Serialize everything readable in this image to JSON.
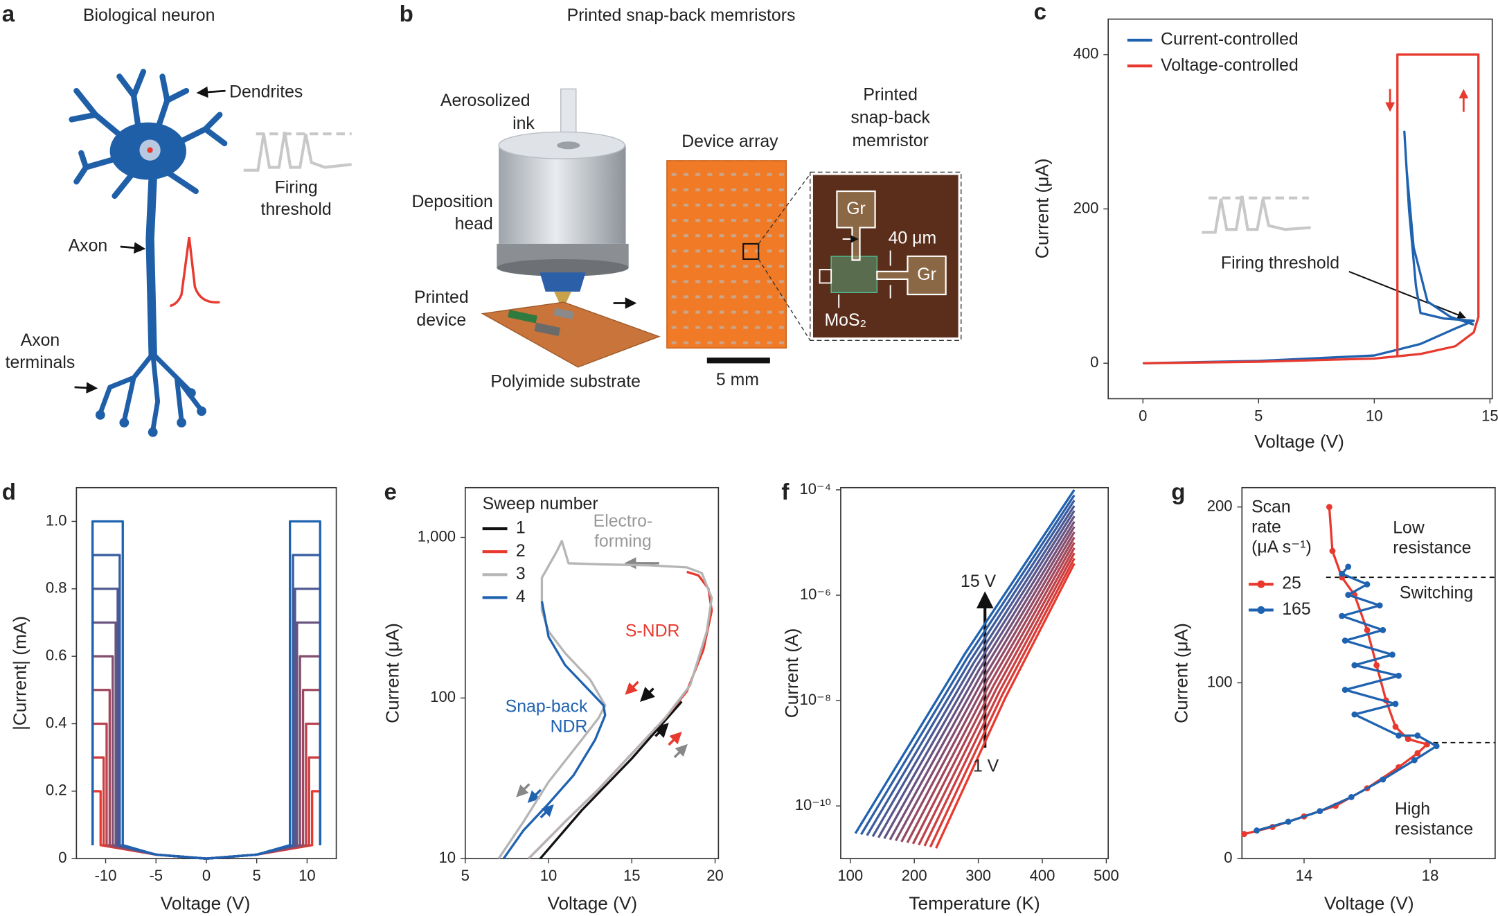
{
  "panel_labels": [
    "a",
    "b",
    "c",
    "d",
    "e",
    "f",
    "g"
  ],
  "diagram_a": {
    "title": "Biological neuron",
    "dendrites": "Dendrites",
    "firing_threshold": [
      "Firing",
      "threshold"
    ],
    "axon": "Axon",
    "axon_terminals": [
      "Axon",
      "terminals"
    ]
  },
  "diagram_b": {
    "title": "Printed snap-back memristors",
    "aerosolized_ink": [
      "Aerosolized",
      "ink"
    ],
    "deposition_head": [
      "Deposition",
      "head"
    ],
    "printed_device": [
      "Printed",
      "device"
    ],
    "substrate": "Polyimide substrate",
    "device_array": "Device array",
    "memristor": [
      "Printed",
      "snap-back",
      "memristor"
    ],
    "scale_bar": "5 mm",
    "electrode_1": "Gr",
    "electrode_2": "Gr",
    "gap": "40 μm",
    "channel": "MoS₂"
  },
  "chart_data": [
    {
      "type": "line",
      "xlabel": "Voltage (V)",
      "ylabel": "Current (μA)",
      "xlim": [
        -1.5,
        15.1
      ],
      "ylim": [
        -46,
        446
      ],
      "xticks": [
        0,
        5,
        10,
        15
      ],
      "yticks": [
        0,
        200,
        400
      ],
      "legend": "upper left",
      "series": [
        {
          "name": "Current-controlled",
          "color": "#1f62b0",
          "x": [
            0,
            5,
            10,
            12,
            13.5,
            14.3,
            13,
            12,
            11.8,
            11.5,
            11.3,
            11.4,
            11.7,
            12.3,
            13.3,
            14.3
          ],
          "values": [
            0,
            3,
            10,
            25,
            45,
            55,
            58,
            65,
            100,
            200,
            300,
            250,
            150,
            80,
            60,
            50
          ]
        },
        {
          "name": "Voltage-controlled",
          "color": "#e8392e",
          "x": [
            0,
            5,
            10,
            12,
            13.5,
            14.3,
            14.5,
            14.5,
            11.0,
            11.0
          ],
          "values": [
            0,
            2,
            6,
            12,
            22,
            40,
            60,
            400,
            400,
            8
          ]
        }
      ],
      "annotations": [
        {
          "text": [
            "Firing threshold"
          ],
          "color": "#222"
        }
      ]
    },
    {
      "type": "line",
      "xlabel": "Voltage (V)",
      "ylabel": "|Current| (mA)",
      "xlim": [
        -12.9,
        12.9
      ],
      "ylim": [
        0,
        1.1
      ],
      "xticks": [
        -10,
        -5,
        0,
        5,
        10
      ],
      "yticks": [
        0,
        0.2,
        0.4,
        0.6,
        0.8,
        {
          "value": 1,
          "label": "1.0"
        }
      ],
      "series": [
        {
          "color": "#e8392e",
          "x": [
            -11.3,
            -11.3,
            -10.5,
            -10.5,
            -5,
            0,
            5,
            10.5,
            10.5,
            11.3,
            11.3
          ],
          "values": [
            0.04,
            0.2,
            0.2,
            0.04,
            0.012,
            0,
            0.012,
            0.04,
            0.2,
            0.2,
            0.04
          ]
        },
        {
          "color": "#cf3e3e",
          "x": [
            -11.3,
            -11.3,
            -10.2,
            -10.2,
            -5,
            0,
            5,
            10.2,
            10.2,
            11.3,
            11.3
          ],
          "values": [
            0.04,
            0.3,
            0.3,
            0.04,
            0.012,
            0,
            0.012,
            0.04,
            0.3,
            0.3,
            0.04
          ]
        },
        {
          "color": "#b6434f",
          "x": [
            -11.3,
            -11.3,
            -9.9,
            -9.9,
            -5,
            0,
            5,
            9.9,
            9.9,
            11.3,
            11.3
          ],
          "values": [
            0.04,
            0.4,
            0.4,
            0.04,
            0.012,
            0,
            0.012,
            0.04,
            0.4,
            0.4,
            0.04
          ]
        },
        {
          "color": "#9d485f",
          "x": [
            -11.3,
            -11.3,
            -9.6,
            -9.6,
            -5,
            0,
            5,
            9.6,
            9.6,
            11.3,
            11.3
          ],
          "values": [
            0.04,
            0.5,
            0.5,
            0.04,
            0.012,
            0,
            0.012,
            0.04,
            0.5,
            0.5,
            0.04
          ]
        },
        {
          "color": "#834e6f",
          "x": [
            -11.3,
            -11.3,
            -9.3,
            -9.3,
            -5,
            0,
            5,
            9.3,
            9.3,
            11.3,
            11.3
          ],
          "values": [
            0.04,
            0.6,
            0.6,
            0.04,
            0.012,
            0,
            0.012,
            0.04,
            0.6,
            0.6,
            0.04
          ]
        },
        {
          "color": "#6a537f",
          "x": [
            -11.3,
            -11.3,
            -9.0,
            -9.0,
            -5,
            0,
            5,
            9.0,
            9.0,
            11.3,
            11.3
          ],
          "values": [
            0.04,
            0.7,
            0.7,
            0.04,
            0.012,
            0,
            0.012,
            0.04,
            0.7,
            0.7,
            0.04
          ]
        },
        {
          "color": "#515890",
          "x": [
            -11.3,
            -11.3,
            -8.8,
            -8.8,
            -5,
            0,
            5,
            8.8,
            8.8,
            11.3,
            11.3
          ],
          "values": [
            0.04,
            0.8,
            0.8,
            0.04,
            0.012,
            0,
            0.012,
            0.04,
            0.8,
            0.8,
            0.04
          ]
        },
        {
          "color": "#385da0",
          "x": [
            -11.3,
            -11.3,
            -8.6,
            -8.6,
            -5,
            0,
            5,
            8.6,
            8.6,
            11.3,
            11.3
          ],
          "values": [
            0.04,
            0.9,
            0.9,
            0.04,
            0.012,
            0,
            0.012,
            0.04,
            0.9,
            0.9,
            0.04
          ]
        },
        {
          "color": "#1f62b0",
          "x": [
            -11.3,
            -11.3,
            -8.3,
            -8.3,
            -5,
            0,
            5,
            8.3,
            8.3,
            11.3,
            11.3
          ],
          "values": [
            0.04,
            1,
            1,
            0.04,
            0.012,
            0,
            0.012,
            0.04,
            1,
            1,
            0.04
          ]
        }
      ]
    },
    {
      "type": "line",
      "xlabel": "Voltage (V)",
      "ylabel": "Current (μA)",
      "ylog": true,
      "xlim": [
        5,
        20.2
      ],
      "ylim": [
        10,
        2040
      ],
      "xticks": [
        5,
        10,
        15,
        20
      ],
      "yticks": [
        10,
        100,
        {
          "value": 1000,
          "label": "1,000"
        }
      ],
      "legend": "upper left",
      "legend_title": [
        "Sweep number"
      ],
      "series": [
        {
          "name": "1",
          "color": "#111111",
          "x": [
            9.5,
            12,
            15,
            18
          ],
          "values": [
            10,
            20,
            42,
            95
          ]
        },
        {
          "name": "2",
          "color": "#e8392e",
          "x": [
            8.8,
            11,
            13,
            15,
            17,
            18.3,
            19.3,
            19.8,
            19.6,
            19,
            18.3
          ],
          "values": [
            10,
            17,
            27,
            45,
            75,
            110,
            200,
            350,
            480,
            580,
            610
          ]
        },
        {
          "name": "3",
          "color": "#b5b5b5",
          "x": [
            8.8,
            11,
            13,
            15,
            17,
            18.5,
            19.5,
            19.8,
            19.2,
            18.3,
            16,
            13,
            11.2,
            10.8,
            10.5,
            9.6,
            9.6,
            10,
            11,
            12.5,
            13.4,
            13,
            12,
            10,
            8.5,
            7.0
          ],
          "values": [
            10,
            17,
            27,
            45,
            75,
            120,
            260,
            420,
            600,
            650,
            670,
            680,
            690,
            950,
            820,
            560,
            350,
            260,
            190,
            130,
            90,
            75,
            55,
            30,
            17,
            10
          ]
        },
        {
          "name": "4",
          "color": "#1f62b0",
          "x": [
            7.3,
            8.5,
            10,
            11.5,
            12.8,
            13.4,
            13.3,
            12.5,
            11,
            10,
            9.6
          ],
          "values": [
            10,
            15,
            22,
            33,
            55,
            78,
            90,
            110,
            160,
            240,
            400
          ]
        }
      ],
      "annotations": [
        {
          "text": [
            "Electro-",
            "forming"
          ],
          "color": "#999999"
        },
        {
          "text": [
            "S-NDR"
          ],
          "color": "#e8392e"
        },
        {
          "text": [
            "Snap-back",
            "NDR"
          ],
          "color": "#1f62b0"
        }
      ]
    },
    {
      "type": "line",
      "xlabel": "Temperature (K)",
      "ylabel": "Current (A)",
      "ylog": true,
      "xlim": [
        85,
        503
      ],
      "ylim": [
        1e-11,
        0.00011
      ],
      "xticks": [
        100,
        200,
        300,
        400,
        500
      ],
      "yticks": [
        {
          "value": 1e-10,
          "label": "10⁻¹⁰"
        },
        {
          "value": 1e-08,
          "label": "10⁻⁸"
        },
        {
          "value": 1e-06,
          "label": "10⁻⁶"
        },
        {
          "value": 0.0001,
          "label": "10⁻⁴"
        }
      ],
      "series": [
        {
          "color": "#e8392e",
          "x": [
            234,
            342,
            450
          ],
          "values": [
            1.58e-11,
            1.12e-08,
            4e-06
          ]
        },
        {
          "color": "#da3c37",
          "x": [
            225,
            337.5,
            450
          ],
          "values": [
            1.66e-11,
            1.29e-08,
            5e-06
          ]
        },
        {
          "color": "#cb3f41",
          "x": [
            216,
            333,
            450
          ],
          "values": [
            1.74e-11,
            1.48e-08,
            6.3e-06
          ]
        },
        {
          "color": "#bd424a",
          "x": [
            207,
            328.5,
            450
          ],
          "values": [
            1.82e-11,
            1.7e-08,
            7.9e-06
          ]
        },
        {
          "color": "#af4553",
          "x": [
            198,
            324,
            450
          ],
          "values": [
            1.91e-11,
            1.95e-08,
            1e-05
          ]
        },
        {
          "color": "#a0485c",
          "x": [
            189,
            319.5,
            450
          ],
          "values": [
            2e-11,
            2.24e-08,
            1.26e-05
          ]
        },
        {
          "color": "#924b66",
          "x": [
            180,
            315,
            450
          ],
          "values": [
            2.09e-11,
            2.57e-08,
            1.58e-05
          ]
        },
        {
          "color": "#834e6f",
          "x": [
            171,
            310.5,
            450
          ],
          "values": [
            2.19e-11,
            2.95e-08,
            2e-05
          ]
        },
        {
          "color": "#755078",
          "x": [
            162,
            306,
            450
          ],
          "values": [
            2.29e-11,
            3.39e-08,
            2.5e-05
          ]
        },
        {
          "color": "#675382",
          "x": [
            153,
            301.5,
            450
          ],
          "values": [
            2.4e-11,
            3.89e-08,
            3.16e-05
          ]
        },
        {
          "color": "#58568b",
          "x": [
            144,
            297,
            450
          ],
          "values": [
            2.51e-11,
            4.47e-08,
            4e-05
          ]
        },
        {
          "color": "#4a5994",
          "x": [
            135,
            292.5,
            450
          ],
          "values": [
            2.63e-11,
            5.13e-08,
            5e-05
          ]
        },
        {
          "color": "#3c5c9e",
          "x": [
            126,
            288,
            450
          ],
          "values": [
            2.75e-11,
            5.89e-08,
            6.3e-05
          ]
        },
        {
          "color": "#2d5fa7",
          "x": [
            117,
            283.5,
            450
          ],
          "values": [
            2.88e-11,
            6.76e-08,
            7.9e-05
          ]
        },
        {
          "color": "#1f62b0",
          "x": [
            108,
            279,
            450
          ],
          "values": [
            3.02e-11,
            7.76e-08,
            0.0001
          ]
        }
      ],
      "annotations": [
        {
          "text": [
            "15 V"
          ],
          "color": "#222"
        },
        {
          "text": [
            "1 V"
          ],
          "color": "#222"
        }
      ]
    },
    {
      "type": "line",
      "xlabel": "Voltage (V)",
      "ylabel": "Current (μA)",
      "xlim": [
        12.03,
        20.06
      ],
      "ylim": [
        0,
        211
      ],
      "xticks": [
        14,
        18
      ],
      "yticks": [
        0,
        100,
        200
      ],
      "legend": "center left",
      "legend_title": [
        "Scan",
        "rate",
        "(μA s⁻¹)"
      ],
      "markers": true,
      "series": [
        {
          "name": "25",
          "color": "#e8392e",
          "x": [
            12.1,
            13,
            14,
            15,
            16,
            17,
            17.6,
            17.9,
            17.3,
            16.9,
            16.6,
            16.3,
            16,
            15.6,
            15.2,
            14.9,
            14.8
          ],
          "values": [
            14,
            18,
            24,
            30,
            40,
            52,
            60,
            65,
            68,
            75,
            90,
            110,
            130,
            150,
            160,
            175,
            200
          ]
        },
        {
          "name": "165",
          "color": "#1f62b0",
          "x": [
            12.5,
            13.5,
            14.5,
            15.5,
            16.5,
            17.5,
            18.2,
            17.6,
            17,
            15.6,
            16.9,
            15.3,
            17,
            15.6,
            16.8,
            15.3,
            16.5,
            15.2,
            16.4,
            15.4,
            16,
            15.2,
            15.4
          ],
          "values": [
            16,
            21,
            27,
            35,
            45,
            56,
            64,
            70,
            70,
            82,
            88,
            96,
            104,
            110,
            116,
            124,
            130,
            138,
            144,
            150,
            156,
            162,
            166
          ]
        }
      ],
      "hlines": [
        {
          "y": 160,
          "from_x": 14.7
        },
        {
          "y": 66,
          "from_x": 18.1
        }
      ],
      "annotations": [
        {
          "text": [
            "Low",
            "resistance"
          ],
          "color": "#222"
        },
        {
          "text": [
            "Switching"
          ],
          "color": "#222"
        },
        {
          "text": [
            "High",
            "resistance"
          ],
          "color": "#222"
        }
      ]
    }
  ]
}
